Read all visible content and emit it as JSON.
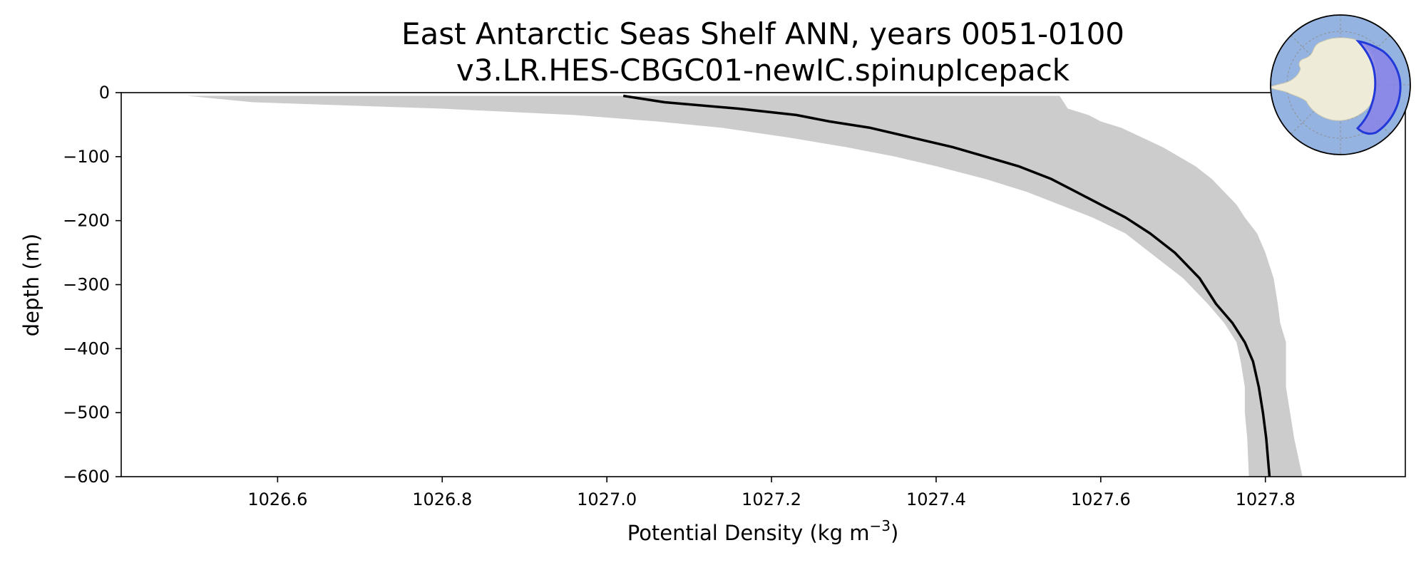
{
  "chart_data": {
    "type": "line",
    "title": "East Antarctic Seas Shelf ANN, years 0051-0100",
    "subtitle": "v3.LR.HES-CBGC01-newIC.spinupIcepack",
    "xlabel": "Potential Density (kg m",
    "xlabel_superscript": "−3",
    "xlabel_suffix": ")",
    "ylabel": "depth (m)",
    "xlim": [
      1026.41,
      1027.97
    ],
    "ylim": [
      -600,
      0
    ],
    "xticks": [
      1026.6,
      1026.8,
      1027.0,
      1027.2,
      1027.4,
      1027.6,
      1027.8
    ],
    "yticks": [
      0,
      -100,
      -200,
      -300,
      -400,
      -500,
      -600
    ],
    "xtick_labels": [
      "1026.6",
      "1026.8",
      "1027.0",
      "1027.2",
      "1027.4",
      "1027.6",
      "1027.8"
    ],
    "ytick_labels": [
      "0",
      "−100",
      "−200",
      "−300",
      "−400",
      "−500",
      "−600"
    ],
    "grid": false,
    "colors": {
      "mean_line": "#000000",
      "band": "#cccccc"
    },
    "mean_profile": {
      "x": [
        1027.02,
        1027.07,
        1027.16,
        1027.23,
        1027.27,
        1027.32,
        1027.37,
        1027.42,
        1027.46,
        1027.5,
        1027.54,
        1027.57,
        1027.6,
        1027.63,
        1027.66,
        1027.69,
        1027.72,
        1027.74,
        1027.76,
        1027.775,
        1027.785,
        1027.792,
        1027.797,
        1027.801,
        1027.805
      ],
      "y": [
        -5,
        -15,
        -25,
        -35,
        -45,
        -55,
        -70,
        -85,
        -100,
        -115,
        -135,
        -155,
        -175,
        -195,
        -220,
        -250,
        -290,
        -330,
        -360,
        -390,
        -420,
        -460,
        -500,
        -540,
        -600
      ]
    },
    "range_band": {
      "y": [
        -5,
        -15,
        -25,
        -35,
        -45,
        -55,
        -70,
        -85,
        -100,
        -115,
        -135,
        -155,
        -175,
        -195,
        -220,
        -250,
        -290,
        -330,
        -360,
        -390,
        -420,
        -460,
        -500,
        -540,
        -600
      ],
      "lower": [
        1026.49,
        1026.57,
        1026.8,
        1026.96,
        1027.06,
        1027.14,
        1027.22,
        1027.29,
        1027.35,
        1027.4,
        1027.46,
        1027.51,
        1027.55,
        1027.59,
        1027.63,
        1027.66,
        1027.7,
        1027.73,
        1027.75,
        1027.765,
        1027.77,
        1027.775,
        1027.775,
        1027.778,
        1027.78
      ],
      "upper": [
        1027.55,
        1027.555,
        1027.56,
        1027.585,
        1027.6,
        1027.625,
        1027.65,
        1027.675,
        1027.695,
        1027.715,
        1027.735,
        1027.75,
        1027.765,
        1027.775,
        1027.79,
        1027.8,
        1027.81,
        1027.815,
        1027.818,
        1027.825,
        1027.825,
        1027.825,
        1027.83,
        1027.835,
        1027.845
      ]
    },
    "inset_map": {
      "ocean": "#94b3e0",
      "land": "#eeecd8",
      "region": "#8a82e8",
      "region_edge": "#2238d8",
      "grid": "#909090"
    }
  }
}
